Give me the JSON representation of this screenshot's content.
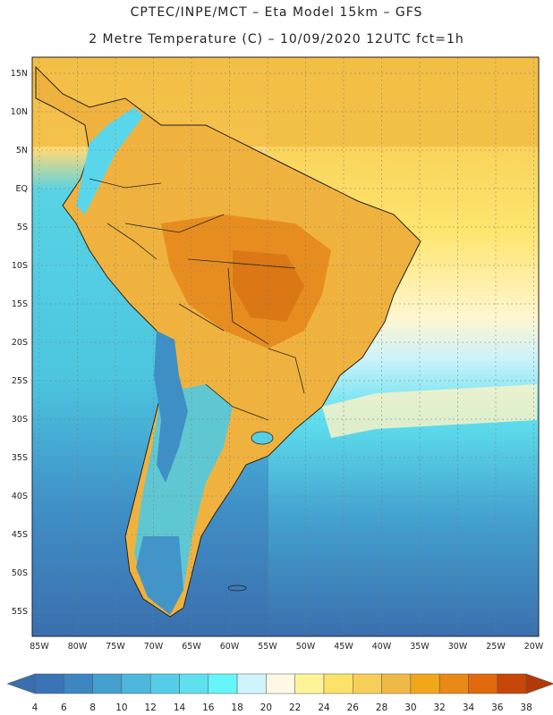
{
  "header": {
    "line1": "CPTEC/INPE/MCT –  Eta Model 15km – GFS",
    "line2": "2 Metre Temperature (C) – 10/09/2020 12UTC fct=1h"
  },
  "map": {
    "lat_labels": [
      "15N",
      "10N",
      "5N",
      "EQ",
      "5S",
      "10S",
      "15S",
      "20S",
      "25S",
      "30S",
      "35S",
      "40S",
      "45S",
      "50S",
      "55S"
    ],
    "lon_labels": [
      "85W",
      "80W",
      "75W",
      "70W",
      "65W",
      "60W",
      "55W",
      "50W",
      "45W",
      "40W",
      "35W",
      "30W",
      "25W",
      "20W"
    ]
  },
  "colorbar": {
    "labels": [
      "4",
      "6",
      "8",
      "10",
      "12",
      "14",
      "16",
      "18",
      "20",
      "22",
      "24",
      "26",
      "28",
      "30",
      "32",
      "34",
      "36",
      "38"
    ],
    "colors": [
      "#3a74b6",
      "#3d86c2",
      "#43a0cf",
      "#4db8dc",
      "#56cde6",
      "#5ee0ee",
      "#66f5fb",
      "#d0f4fb",
      "#fff8e6",
      "#fdf49a",
      "#fde26a",
      "#f7cf58",
      "#eeb947",
      "#f0a81a",
      "#e98a17",
      "#e06a0d",
      "#c84607"
    ],
    "under_color": "#3a6fae",
    "over_color": "#b23a08"
  }
}
